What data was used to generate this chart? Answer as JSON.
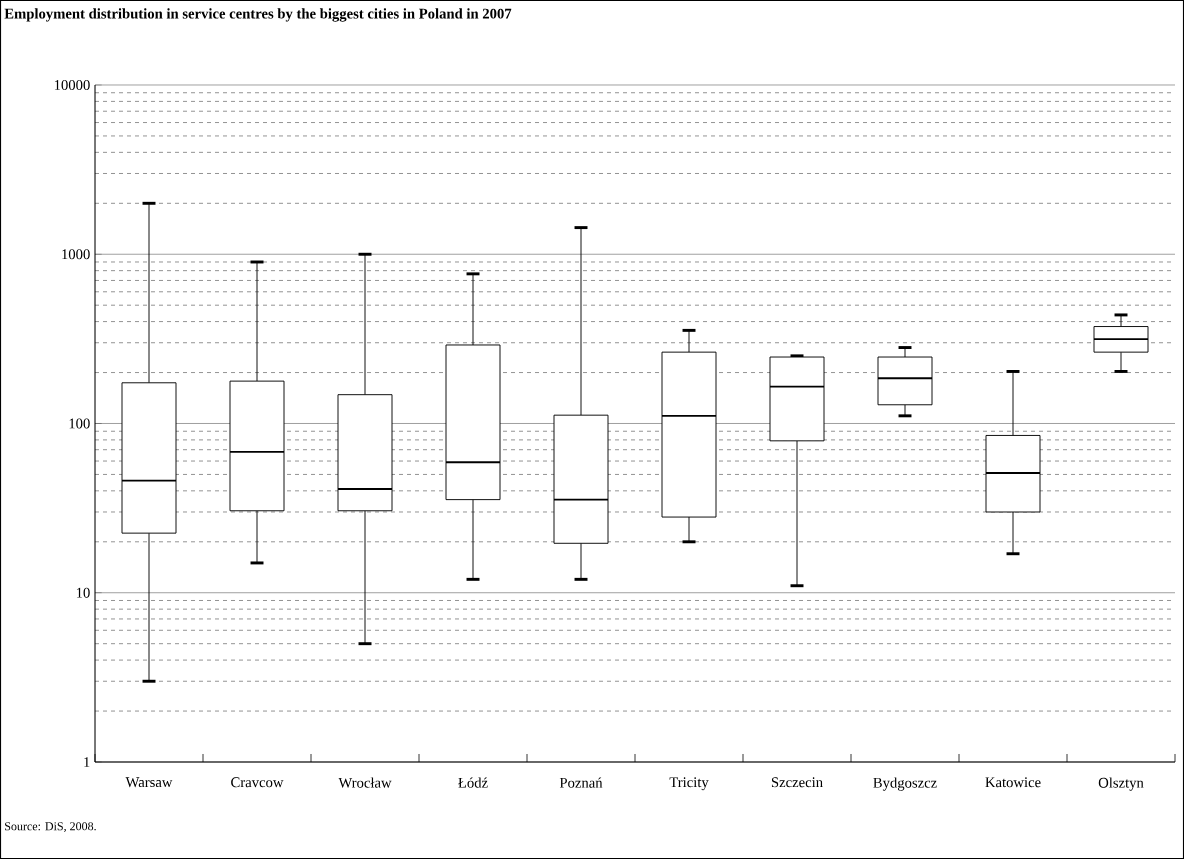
{
  "chart_data": {
    "type": "box",
    "title": "Employment distribution in service centres by the biggest cities in Poland in 2007",
    "categories": [
      "Warsaw",
      "Cravcow",
      "Wrocław",
      "Łódź",
      "Poznań",
      "Tricity",
      "Szczecin",
      "Bydgoszcz",
      "Katowice",
      "Olsztyn"
    ],
    "boxes": [
      {
        "low": 3,
        "q1": 22.5,
        "median": 46,
        "q3": 174,
        "high": 2000
      },
      {
        "low": 15,
        "q1": 30.5,
        "median": 68,
        "q3": 178,
        "high": 900
      },
      {
        "low": 5,
        "q1": 30.5,
        "median": 41,
        "q3": 148,
        "high": 1000
      },
      {
        "low": 12,
        "q1": 35.5,
        "median": 59,
        "q3": 291,
        "high": 766
      },
      {
        "low": 12,
        "q1": 19.6,
        "median": 35.5,
        "q3": 112,
        "high": 1437
      },
      {
        "low": 20,
        "q1": 28,
        "median": 111,
        "q3": 264,
        "high": 355
      },
      {
        "low": 11,
        "q1": 79,
        "median": 165,
        "q3": 247,
        "high": 251
      },
      {
        "low": 111,
        "q1": 129,
        "median": 185,
        "q3": 247,
        "high": 281
      },
      {
        "low": 17,
        "q1": 30,
        "median": 51,
        "q3": 85,
        "high": 203
      },
      {
        "low": 203,
        "q1": 264,
        "median": 315,
        "q3": 374,
        "high": 438
      }
    ],
    "ylim": [
      1,
      10000
    ],
    "yticks": [
      1,
      10,
      100,
      1000,
      10000
    ],
    "log": true,
    "grid": true,
    "annotations": [
      "Source: DiS, 2008."
    ]
  }
}
